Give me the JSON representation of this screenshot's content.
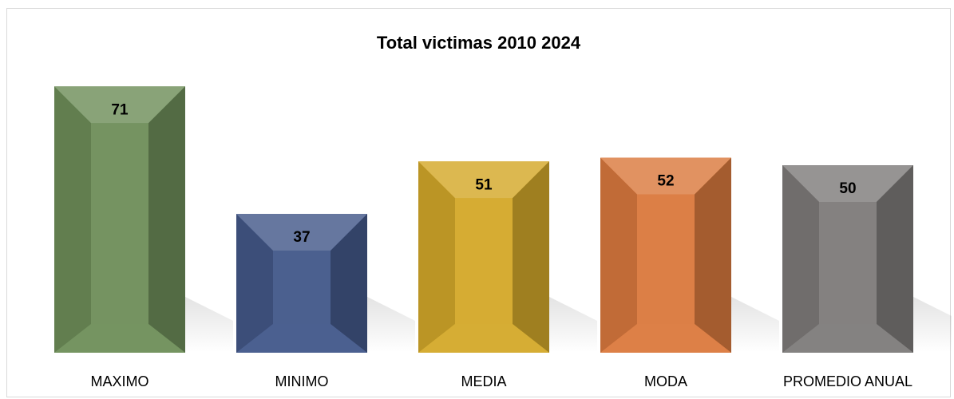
{
  "chart_data": {
    "type": "bar",
    "title": "Total victimas 2010 2024",
    "categories": [
      "MAXIMO",
      "MINIMO",
      "MEDIA",
      "MODA",
      "PROMEDIO ANUAL"
    ],
    "values": [
      71,
      37,
      51,
      52,
      50
    ],
    "ylim": [
      0,
      80
    ],
    "grid": false,
    "legend": "none",
    "colors": [
      "#6f8f5a",
      "#44598a",
      "#d4a92a",
      "#db7a3e",
      "#7f7c7b"
    ]
  }
}
